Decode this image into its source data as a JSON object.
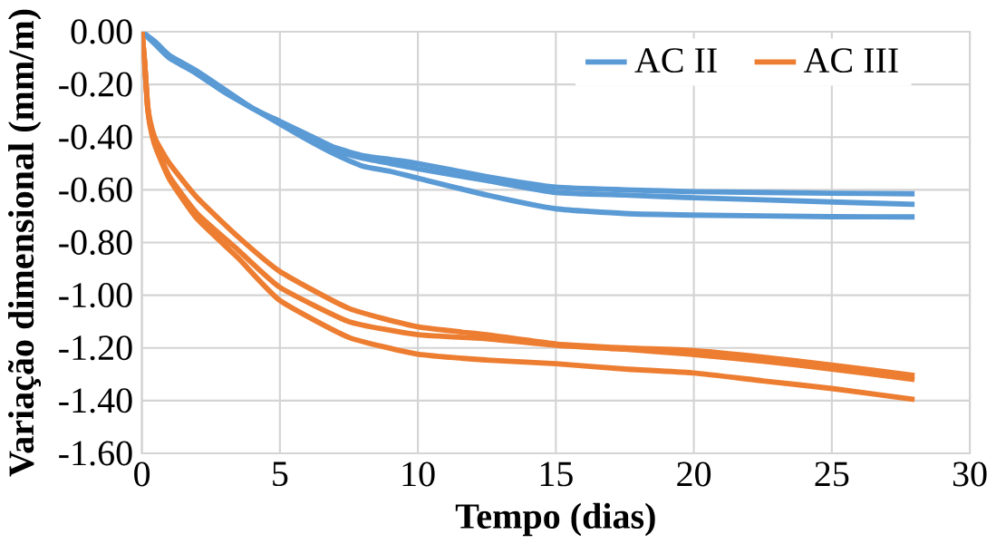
{
  "chart_data": {
    "type": "line",
    "xlabel": "Tempo (dias)",
    "ylabel": "Variação dimensional (mm/m)",
    "xlim": [
      0,
      30
    ],
    "xticks": [
      0,
      5,
      10,
      15,
      20,
      25,
      30
    ],
    "ylim": [
      -1.6,
      0
    ],
    "yticks": [
      {
        "value": -1.6,
        "label": "-1.60"
      },
      {
        "value": -1.4,
        "label": "-1.40"
      },
      {
        "value": -1.2,
        "label": "-1.20"
      },
      {
        "value": -1.0,
        "label": "-1.00"
      },
      {
        "value": -0.8,
        "label": "-0.80"
      },
      {
        "value": -0.6,
        "label": "-0.60"
      },
      {
        "value": -0.4,
        "label": "-0.40"
      },
      {
        "value": -0.2,
        "label": "-0.20"
      },
      {
        "value": 0,
        "label": "0.00"
      }
    ],
    "grid": true,
    "legend": "top right",
    "marker": "none",
    "line_style": "solid",
    "series": [
      {
        "name": "AC II",
        "color": "#5b9bd5",
        "x": [
          0,
          0.5,
          1,
          2,
          3,
          4,
          5,
          6,
          7,
          8,
          9,
          10,
          12.5,
          15,
          17.5,
          20,
          25,
          28
        ],
        "values": [
          0,
          -0.04,
          -0.09,
          -0.15,
          -0.22,
          -0.29,
          -0.34,
          -0.39,
          -0.44,
          -0.47,
          -0.485,
          -0.5,
          -0.55,
          -0.59,
          -0.6,
          -0.607,
          -0.613,
          -0.615
        ]
      },
      {
        "color": "#5b9bd5",
        "x": [
          0,
          0.5,
          1,
          2,
          3,
          4,
          5,
          6,
          7,
          8,
          9,
          10,
          12.5,
          15,
          17.5,
          20,
          25,
          28
        ],
        "values": [
          0,
          -0.045,
          -0.095,
          -0.16,
          -0.23,
          -0.29,
          -0.345,
          -0.4,
          -0.45,
          -0.48,
          -0.5,
          -0.52,
          -0.565,
          -0.61,
          -0.62,
          -0.63,
          -0.646,
          -0.655
        ]
      },
      {
        "color": "#5b9bd5",
        "x": [
          0,
          0.5,
          1,
          2,
          3,
          4,
          5,
          6,
          7,
          8,
          9,
          10,
          12.5,
          15,
          17.5,
          20,
          25,
          28
        ],
        "values": [
          0,
          -0.05,
          -0.1,
          -0.16,
          -0.23,
          -0.29,
          -0.35,
          -0.41,
          -0.465,
          -0.51,
          -0.53,
          -0.556,
          -0.62,
          -0.672,
          -0.69,
          -0.696,
          -0.702,
          -0.703
        ]
      },
      {
        "name": "AC III",
        "color": "#ed7d31",
        "x": [
          0,
          0.1,
          0.2,
          0.3,
          0.5,
          1,
          2,
          3.5,
          5,
          7.5,
          10,
          12.5,
          15,
          17.5,
          20,
          22.5,
          25,
          28
        ],
        "values": [
          0,
          -0.12,
          -0.27,
          -0.34,
          -0.41,
          -0.5,
          -0.63,
          -0.78,
          -0.91,
          -1.05,
          -1.12,
          -1.15,
          -1.185,
          -1.2,
          -1.21,
          -1.235,
          -1.265,
          -1.305
        ]
      },
      {
        "color": "#ed7d31",
        "x": [
          0,
          0.1,
          0.2,
          0.3,
          0.5,
          1,
          2,
          3.5,
          5,
          7.5,
          10,
          12.5,
          15,
          17.5,
          20,
          22.5,
          25,
          28
        ],
        "values": [
          0,
          -0.12,
          -0.28,
          -0.35,
          -0.43,
          -0.55,
          -0.69,
          -0.83,
          -0.97,
          -1.1,
          -1.15,
          -1.165,
          -1.19,
          -1.205,
          -1.225,
          -1.25,
          -1.28,
          -1.32
        ]
      },
      {
        "color": "#ed7d31",
        "x": [
          0,
          0.1,
          0.2,
          0.3,
          0.5,
          1,
          2,
          3.5,
          5,
          7.5,
          10,
          12.5,
          15,
          17.5,
          20,
          22.5,
          25,
          28
        ],
        "values": [
          0,
          -0.12,
          -0.28,
          -0.36,
          -0.44,
          -0.56,
          -0.71,
          -0.86,
          -1.02,
          -1.16,
          -1.224,
          -1.246,
          -1.26,
          -1.28,
          -1.295,
          -1.325,
          -1.354,
          -1.396
        ]
      }
    ]
  }
}
